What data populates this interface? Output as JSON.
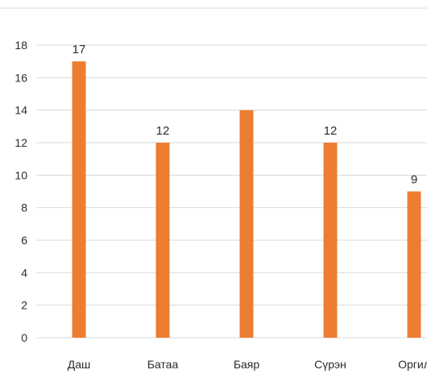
{
  "chart_data": {
    "type": "bar",
    "categories": [
      "Даш",
      "Батаа",
      "Баяр",
      "Сүрэн",
      "Оргил"
    ],
    "values": [
      17,
      12,
      14,
      12,
      9
    ],
    "data_labels": [
      "17",
      "12",
      "",
      "12",
      "9"
    ],
    "title": "",
    "xlabel": "",
    "ylabel": "",
    "ylim": [
      0,
      18
    ],
    "yticks": [
      0,
      2,
      4,
      6,
      8,
      10,
      12,
      14,
      16,
      18
    ],
    "grid": true,
    "legend": "none",
    "colors": {
      "bar": "#ED7D31",
      "grid": "#d9d9d9",
      "text": "#2b2b2b"
    }
  }
}
